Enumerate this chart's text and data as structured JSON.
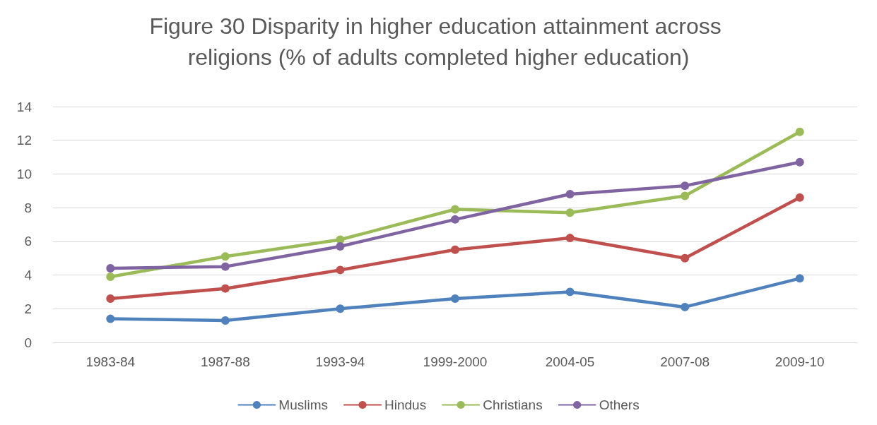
{
  "chart_data": {
    "type": "line",
    "title": "Figure 30 Disparity in higher education attainment across religions (% of adults completed higher education)",
    "categories": [
      "1983-84",
      "1987-88",
      "1993-94",
      "1999-2000",
      "2004-05",
      "2007-08",
      "2009-10"
    ],
    "series": [
      {
        "name": "Muslims",
        "color": "#4f81bd",
        "values": [
          1.4,
          1.3,
          2.0,
          2.6,
          3.0,
          2.1,
          3.8
        ]
      },
      {
        "name": "Hindus",
        "color": "#c0504d",
        "values": [
          2.6,
          3.2,
          4.3,
          5.5,
          6.2,
          5.0,
          8.6
        ]
      },
      {
        "name": "Christians",
        "color": "#9bbb59",
        "values": [
          3.9,
          5.1,
          6.1,
          7.9,
          7.7,
          8.7,
          12.5
        ]
      },
      {
        "name": "Others",
        "color": "#8064a2",
        "values": [
          4.4,
          4.5,
          5.7,
          7.3,
          8.8,
          9.3,
          10.7
        ]
      }
    ],
    "ylim": [
      0,
      14
    ],
    "yticks": [
      0,
      2,
      4,
      6,
      8,
      10,
      12,
      14
    ],
    "grid": "y",
    "legend": "bottom",
    "marker": "circle",
    "line_style": "solid"
  }
}
